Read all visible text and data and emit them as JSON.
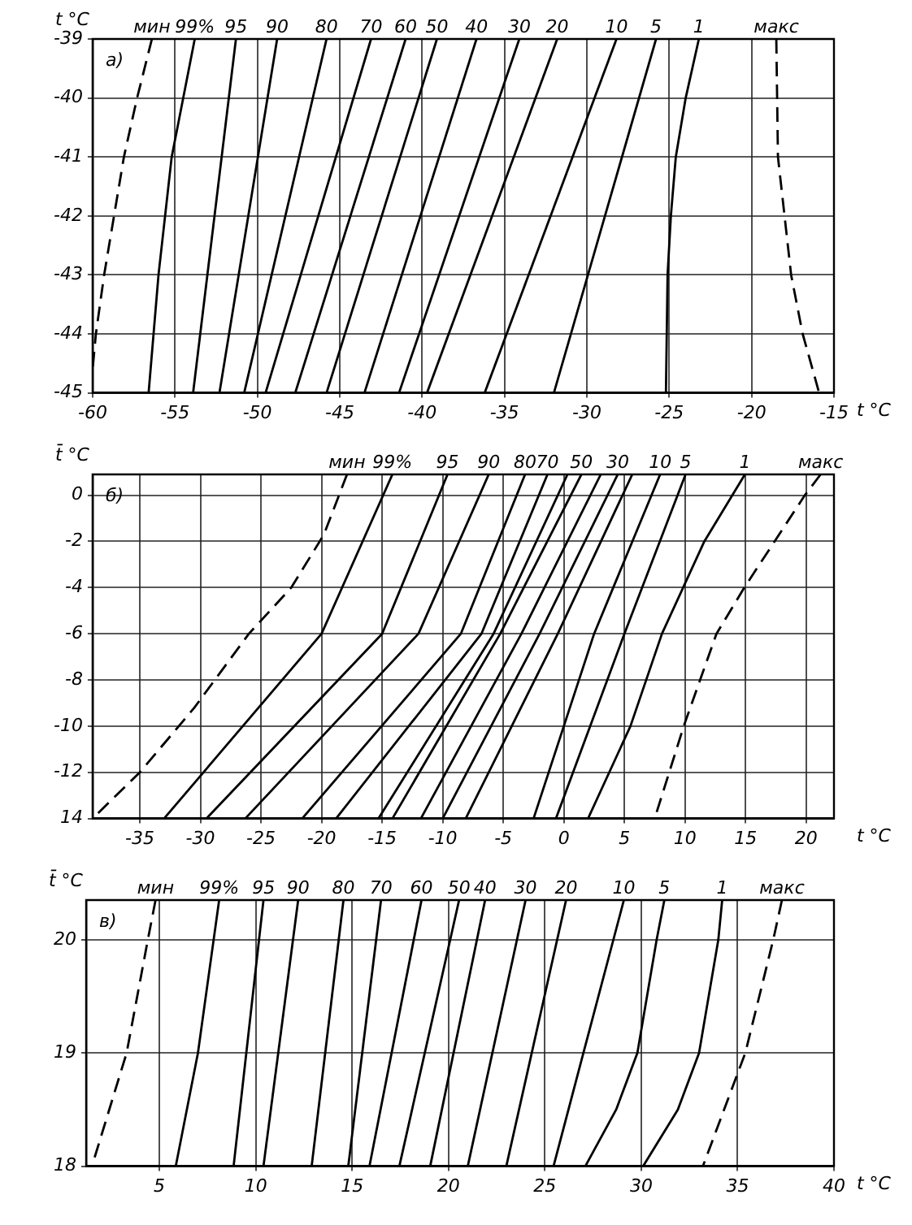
{
  "chart_data": [
    {
      "type": "line",
      "xlabel": "t °C",
      "ylabel": "t °C",
      "annotations": [
        "а)"
      ],
      "xlim": [
        -60,
        -15
      ],
      "ylim": [
        -45,
        -39
      ],
      "xticks": [
        -60,
        -55,
        -50,
        -45,
        -40,
        -35,
        -30,
        -25,
        -20,
        -15
      ],
      "yticks": [
        -45,
        -44,
        -43,
        -42,
        -41,
        -40,
        -39
      ],
      "grid": true,
      "legend": false,
      "marker": "none",
      "series": [
        {
          "name": "мин",
          "color": "#000000",
          "line_style": "dashed",
          "x": [
            -56.4,
            -57.3,
            -58.1,
            -58.7,
            -59.3,
            -59.8,
            -60
          ],
          "values": [
            -39,
            -40,
            -41,
            -42,
            -43,
            -44,
            -44.6
          ]
        },
        {
          "name": "99%",
          "color": "#000000",
          "x": [
            -53.8,
            -55.2,
            -56.0,
            -56.6
          ],
          "values": [
            -39,
            -41,
            -43,
            -45
          ]
        },
        {
          "name": "95",
          "color": "#000000",
          "x": [
            -51.3,
            -53.9
          ],
          "values": [
            -39,
            -45
          ]
        },
        {
          "name": "90",
          "color": "#000000",
          "x": [
            -48.8,
            -52.3
          ],
          "values": [
            -39,
            -45
          ]
        },
        {
          "name": "80",
          "color": "#000000",
          "x": [
            -45.8,
            -50.8
          ],
          "values": [
            -39,
            -45
          ]
        },
        {
          "name": "70",
          "color": "#000000",
          "x": [
            -43.1,
            -49.5
          ],
          "values": [
            -39,
            -45
          ]
        },
        {
          "name": "60",
          "color": "#000000",
          "x": [
            -41.0,
            -47.7
          ],
          "values": [
            -39,
            -45
          ]
        },
        {
          "name": "50",
          "color": "#000000",
          "x": [
            -39.1,
            -45.8
          ],
          "values": [
            -39,
            -45
          ]
        },
        {
          "name": "40",
          "color": "#000000",
          "x": [
            -36.7,
            -43.5
          ],
          "values": [
            -39,
            -45
          ]
        },
        {
          "name": "30",
          "color": "#000000",
          "x": [
            -34.1,
            -41.4
          ],
          "values": [
            -39,
            -45
          ]
        },
        {
          "name": "20",
          "color": "#000000",
          "x": [
            -31.8,
            -39.7
          ],
          "values": [
            -39,
            -45
          ]
        },
        {
          "name": "10",
          "color": "#000000",
          "x": [
            -28.2,
            -36.2
          ],
          "values": [
            -39,
            -45
          ]
        },
        {
          "name": "5",
          "color": "#000000",
          "x": [
            -25.8,
            -32.0
          ],
          "values": [
            -39,
            -45
          ]
        },
        {
          "name": "1",
          "color": "#000000",
          "x": [
            -23.2,
            -24.0,
            -24.6,
            -24.9,
            -25.1,
            -25.2
          ],
          "values": [
            -39,
            -40,
            -41,
            -42,
            -43,
            -45
          ]
        },
        {
          "name": "макс",
          "color": "#000000",
          "line_style": "dashed",
          "x": [
            -18.5,
            -18.4,
            -18.0,
            -17.6,
            -16.9,
            -15.9
          ],
          "values": [
            -39,
            -41,
            -42,
            -43,
            -44,
            -45
          ]
        }
      ]
    },
    {
      "type": "line",
      "xlabel": "t °C",
      "ylabel": "t̄ °C",
      "annotations": [
        "б)"
      ],
      "xlim": [
        -38.9,
        22.3
      ],
      "ylim": [
        -14,
        0.9
      ],
      "xticks": [
        -35,
        -30,
        -25,
        -20,
        -15,
        -10,
        -5,
        0,
        5,
        10,
        15,
        20
      ],
      "yticks": [
        {
          "value": -14,
          "label": "14"
        },
        -12,
        -10,
        -8,
        -6,
        -4,
        -2,
        0
      ],
      "grid": true,
      "legend": false,
      "marker": "none",
      "series": [
        {
          "name": "мин",
          "color": "#000000",
          "line_style": "dashed",
          "x": [
            -17.9,
            -19.8,
            -22.5,
            -26.0,
            -30.5,
            -35.0,
            -38.9
          ],
          "values": [
            0.9,
            -1.7,
            -4,
            -6,
            -9.2,
            -12,
            -14
          ]
        },
        {
          "name": "99%",
          "color": "#000000",
          "x": [
            -14.15,
            -20.0,
            -33.0
          ],
          "values": [
            0.9,
            -6,
            -14
          ]
        },
        {
          "name": "95",
          "color": "#000000",
          "x": [
            -9.6,
            -15.0,
            -29.5
          ],
          "values": [
            0.9,
            -6,
            -14
          ]
        },
        {
          "name": "90",
          "color": "#000000",
          "x": [
            -6.2,
            -12.0,
            -26.3
          ],
          "values": [
            0.9,
            -6,
            -14
          ]
        },
        {
          "name": "80",
          "color": "#000000",
          "x": [
            -3.2,
            -8.5,
            -21.6
          ],
          "values": [
            0.9,
            -6,
            -14
          ]
        },
        {
          "name": "70",
          "color": "#000000",
          "x": [
            -1.35,
            -6.8,
            -18.8
          ],
          "values": [
            0.9,
            -6,
            -14
          ]
        },
        {
          "color": "#000000",
          "x": [
            0.3,
            -5.8,
            -15.3
          ],
          "values": [
            0.9,
            -6,
            -14
          ]
        },
        {
          "name": "50",
          "color": "#000000",
          "x": [
            1.45,
            -5.25,
            -14.15
          ],
          "values": [
            0.9,
            -6,
            -14
          ]
        },
        {
          "color": "#000000",
          "x": [
            3.05,
            -3.5,
            -11.8
          ],
          "values": [
            0.9,
            -6,
            -14
          ]
        },
        {
          "name": "30",
          "color": "#000000",
          "x": [
            4.45,
            -2.0,
            -10.0
          ],
          "values": [
            0.9,
            -6,
            -14
          ]
        },
        {
          "color": "#000000",
          "x": [
            5.65,
            -0.5,
            -8.1
          ],
          "values": [
            0.9,
            -6,
            -14
          ]
        },
        {
          "name": "10",
          "color": "#000000",
          "x": [
            7.95,
            2.5,
            -2.5
          ],
          "values": [
            0.9,
            -6,
            -14
          ]
        },
        {
          "name": "5",
          "color": "#000000",
          "x": [
            10.05,
            5.0,
            -0.65
          ],
          "values": [
            0.9,
            -6,
            -14
          ]
        },
        {
          "name": "1",
          "color": "#000000",
          "x": [
            14.95,
            11.6,
            8.1,
            5.5,
            2.0
          ],
          "values": [
            0.9,
            -2,
            -6,
            -10,
            -14
          ]
        },
        {
          "name": "макс",
          "color": "#000000",
          "line_style": "dashed",
          "x": [
            21.2,
            19.9,
            17.4,
            14.9,
            12.6,
            9.9,
            7.5
          ],
          "values": [
            0.9,
            0,
            -2,
            -4,
            -6,
            -10,
            -14
          ]
        }
      ]
    },
    {
      "type": "line",
      "xlabel": "t °C",
      "ylabel": "t̄ °C",
      "annotations": [
        "в)"
      ],
      "xlim": [
        1.2,
        40
      ],
      "ylim": [
        18,
        20.35
      ],
      "xticks": [
        5,
        10,
        15,
        20,
        25,
        30,
        35,
        40
      ],
      "yticks": [
        18,
        19,
        20
      ],
      "grid": true,
      "legend": false,
      "marker": "none",
      "series": [
        {
          "name": "мин",
          "color": "#000000",
          "line_style": "dashed",
          "x": [
            4.8,
            4.4,
            3.3,
            1.5
          ],
          "values": [
            20.35,
            20,
            19,
            18
          ]
        },
        {
          "name": "99%",
          "color": "#000000",
          "x": [
            8.1,
            7.0,
            5.85
          ],
          "values": [
            20.35,
            19,
            18
          ]
        },
        {
          "name": "95",
          "color": "#000000",
          "x": [
            10.4,
            8.85
          ],
          "values": [
            20.35,
            18
          ]
        },
        {
          "name": "90",
          "color": "#000000",
          "x": [
            12.2,
            10.4
          ],
          "values": [
            20.35,
            18
          ]
        },
        {
          "name": "80",
          "color": "#000000",
          "x": [
            14.55,
            12.9
          ],
          "values": [
            20.35,
            18
          ]
        },
        {
          "name": "70",
          "color": "#000000",
          "x": [
            16.5,
            14.8
          ],
          "values": [
            20.35,
            18
          ]
        },
        {
          "name": "60",
          "color": "#000000",
          "x": [
            18.6,
            15.9
          ],
          "values": [
            20.35,
            18
          ]
        },
        {
          "name": "50",
          "color": "#000000",
          "x": [
            20.55,
            17.45
          ],
          "values": [
            20.35,
            18
          ]
        },
        {
          "name": "40",
          "color": "#000000",
          "x": [
            21.9,
            19.05
          ],
          "values": [
            20.35,
            18
          ]
        },
        {
          "name": "30",
          "color": "#000000",
          "x": [
            24.0,
            21.0
          ],
          "values": [
            20.35,
            18
          ]
        },
        {
          "name": "20",
          "color": "#000000",
          "x": [
            26.1,
            23.0
          ],
          "values": [
            20.35,
            18
          ]
        },
        {
          "name": "10",
          "color": "#000000",
          "x": [
            29.1,
            27.0,
            25.45
          ],
          "values": [
            20.35,
            19,
            18
          ]
        },
        {
          "name": "5",
          "color": "#000000",
          "x": [
            31.2,
            30.8,
            29.8,
            28.7,
            27.1
          ],
          "values": [
            20.35,
            20,
            19,
            18.5,
            18
          ]
        },
        {
          "name": "1",
          "color": "#000000",
          "x": [
            34.2,
            34.0,
            33.0,
            31.9,
            30.1
          ],
          "values": [
            20.35,
            20,
            19,
            18.5,
            18
          ]
        },
        {
          "name": "макс",
          "color": "#000000",
          "line_style": "dashed",
          "x": [
            37.3,
            36.85,
            35.4,
            33.2
          ],
          "values": [
            20.35,
            20,
            19,
            18
          ]
        }
      ]
    }
  ]
}
